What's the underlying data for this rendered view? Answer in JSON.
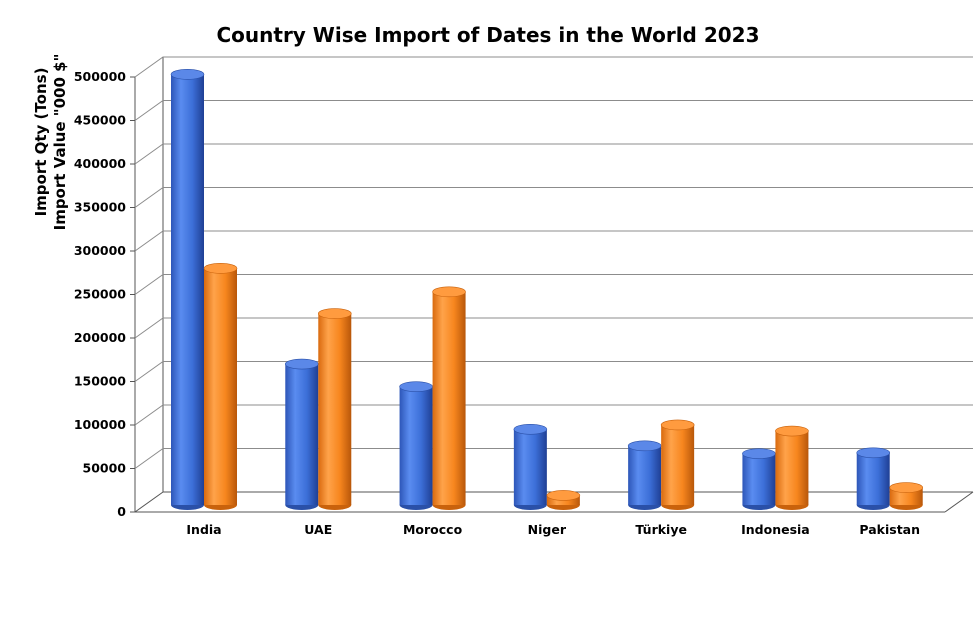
{
  "chart_data": {
    "type": "bar",
    "title": "Country Wise Import of Dates in the World 2023",
    "ylabel_lines": [
      "Import Qty (Tons)",
      "Import Value \"000 $\""
    ],
    "categories": [
      "India",
      "UAE",
      "Morocco",
      "Niger",
      "Türkiye",
      "Indonesia",
      "Pakistan"
    ],
    "series": [
      {
        "color": "#3c6fd8",
        "values": [
          495000,
          162000,
          136000,
          87000,
          68000,
          59000,
          60000
        ]
      },
      {
        "color": "#f7861e",
        "values": [
          272000,
          220000,
          245000,
          11000,
          92000,
          85000,
          20000
        ]
      }
    ],
    "ylim": [
      0,
      500000
    ],
    "yticks": [
      "0",
      "50000",
      "100000",
      "150000",
      "200000",
      "250000",
      "300000",
      "350000",
      "400000",
      "450000",
      "500000"
    ],
    "grid": true,
    "legend": "none"
  }
}
